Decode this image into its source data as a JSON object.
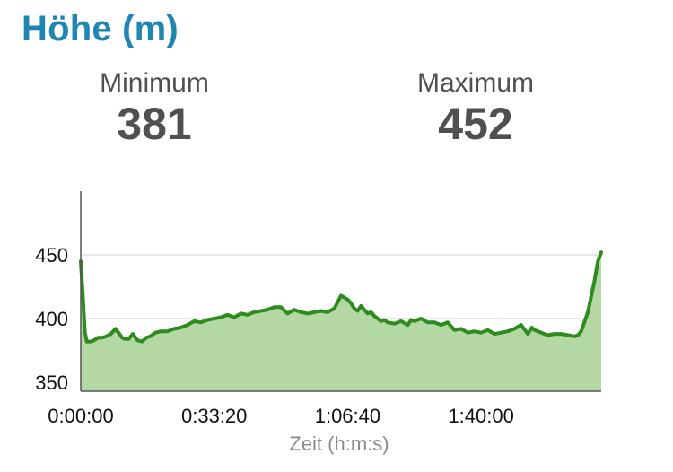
{
  "header": {
    "title": "Höhe (m)"
  },
  "stats": {
    "min_label": "Minimum",
    "min_value": "381",
    "max_label": "Maximum",
    "max_value": "452"
  },
  "chart_data": {
    "type": "area",
    "title": "",
    "xlabel": "Zeit (h:m:s)",
    "ylabel": "",
    "y_ticks": [
      "350",
      "400",
      "450"
    ],
    "x_ticks": [
      "0:00:00",
      "0:33:20",
      "1:06:40",
      "1:40:00"
    ],
    "x_tick_seconds": [
      0,
      2000,
      4000,
      6000
    ],
    "xlim": [
      0,
      7800
    ],
    "ylim": [
      343,
      500
    ],
    "grid": true,
    "colors": {
      "line": "#2e8c1f",
      "fill": "#b4d8a3",
      "grid": "#dddddd"
    },
    "series": [
      {
        "x": [
          0,
          30,
          60,
          90,
          150,
          200,
          260,
          320,
          380,
          450,
          520,
          580,
          620,
          660,
          720,
          780,
          850,
          920,
          980,
          1040,
          1120,
          1200,
          1300,
          1400,
          1500,
          1600,
          1700,
          1800,
          1900,
          2000,
          2100,
          2200,
          2300,
          2400,
          2500,
          2600,
          2700,
          2800,
          2900,
          3000,
          3100,
          3200,
          3300,
          3400,
          3500,
          3600,
          3700,
          3800,
          3900,
          4000,
          4050,
          4100,
          4150,
          4200,
          4250,
          4300,
          4350,
          4400,
          4450,
          4500,
          4550,
          4600,
          4700,
          4800,
          4900,
          4950,
          5000,
          5100,
          5200,
          5300,
          5400,
          5500,
          5600,
          5700,
          5800,
          5900,
          6000,
          6100,
          6200,
          6300,
          6400,
          6500,
          6600,
          6700,
          6760,
          6800,
          6900,
          7000,
          7100,
          7200,
          7300,
          7400,
          7450,
          7500,
          7600,
          7700,
          7750,
          7800
        ],
        "y": [
          445,
          420,
          390,
          382,
          382,
          383,
          385,
          385,
          386,
          388,
          392,
          388,
          385,
          384,
          384,
          388,
          383,
          382,
          385,
          386,
          389,
          390,
          390,
          392,
          393,
          395,
          398,
          397,
          399,
          400,
          401,
          403,
          401,
          404,
          403,
          405,
          406,
          407,
          409,
          409,
          404,
          407,
          405,
          404,
          405,
          406,
          405,
          408,
          418,
          415,
          412,
          408,
          406,
          410,
          407,
          404,
          405,
          402,
          400,
          398,
          399,
          397,
          396,
          398,
          395,
          399,
          398,
          400,
          397,
          397,
          395,
          397,
          391,
          392,
          389,
          390,
          389,
          391,
          388,
          389,
          390,
          392,
          395,
          388,
          393,
          391,
          389,
          387,
          388,
          388,
          387,
          386,
          387,
          390,
          405,
          430,
          445,
          452
        ]
      }
    ]
  }
}
